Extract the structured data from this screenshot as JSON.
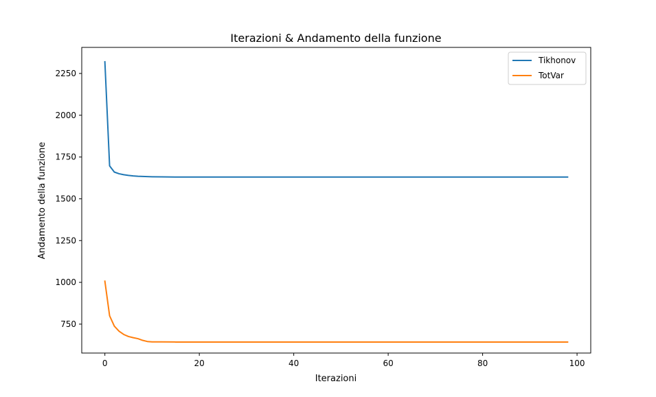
{
  "chart_data": {
    "type": "line",
    "title": "Iterazioni & Andamento della funzione",
    "xlabel": "Iterazioni",
    "ylabel": "Andamento della funzione",
    "xlim": [
      -4.9,
      102.9
    ],
    "ylim": [
      577,
      2406
    ],
    "xticks": [
      0,
      20,
      40,
      60,
      80,
      100
    ],
    "yticks": [
      750,
      1000,
      1250,
      1500,
      1750,
      2000,
      2250
    ],
    "grid": false,
    "legend_position": "top-right",
    "series": [
      {
        "name": "Tikhonov",
        "color": "#1f77b4",
        "x": [
          0,
          1,
          2,
          3,
          4,
          5,
          6,
          7,
          8,
          10,
          12,
          15,
          20,
          30,
          40,
          50,
          60,
          70,
          80,
          90,
          98
        ],
        "y": [
          2320,
          1697,
          1660,
          1650,
          1644,
          1640,
          1637,
          1635,
          1634,
          1632,
          1631,
          1630,
          1630,
          1630,
          1630,
          1630,
          1630,
          1630,
          1630,
          1630,
          1630
        ]
      },
      {
        "name": "TotVar",
        "color": "#ff7f0e",
        "x": [
          0,
          1,
          2,
          3,
          4,
          5,
          6,
          7,
          8,
          9,
          10,
          12,
          15,
          20,
          30,
          40,
          50,
          60,
          70,
          80,
          90,
          98
        ],
        "y": [
          1007,
          800,
          738,
          708,
          688,
          676,
          669,
          663,
          653,
          646,
          644,
          644,
          643,
          643,
          643,
          643,
          643,
          643,
          643,
          643,
          643,
          643
        ]
      }
    ]
  }
}
